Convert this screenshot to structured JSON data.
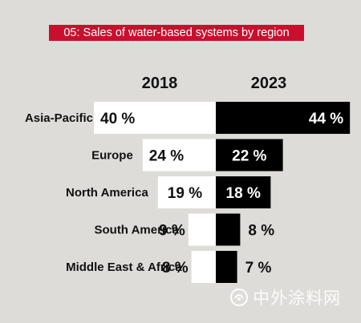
{
  "title": "05: Sales of water-based systems by region",
  "watermark_text": "中外涂料网",
  "colors": {
    "background": "#dddcd8",
    "banner": "#c8102e",
    "bar_2018": "#ffffff",
    "bar_2023": "#000000",
    "text": "#111111"
  },
  "chart_data": {
    "type": "bar",
    "title": "05: Sales of water-based systems by region",
    "unit": "%",
    "categories": [
      "Asia-Pacific",
      "Europe",
      "North America",
      "South America",
      "Middle East & Africa"
    ],
    "series": [
      {
        "name": "2018",
        "values": [
          40,
          24,
          19,
          9,
          8
        ],
        "labels": [
          "40 %",
          "24 %",
          "19 %",
          "9 %",
          "8 %"
        ]
      },
      {
        "name": "2023",
        "values": [
          44,
          22,
          18,
          8,
          7
        ],
        "labels": [
          "44 %",
          "22 %",
          "18 %",
          "8 %",
          "7 %"
        ]
      }
    ]
  }
}
